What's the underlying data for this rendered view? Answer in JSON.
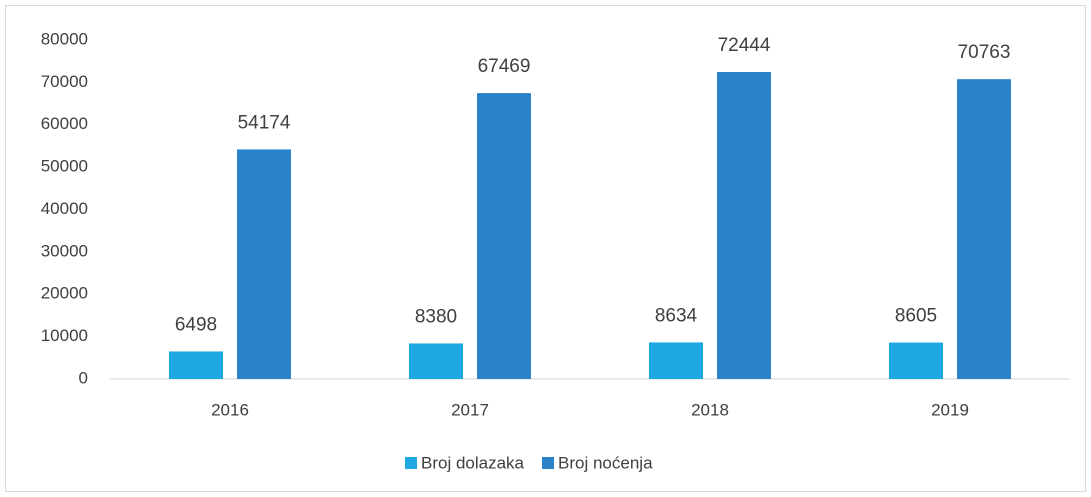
{
  "chart_data": {
    "type": "bar",
    "categories": [
      "2016",
      "2017",
      "2018",
      "2019"
    ],
    "series": [
      {
        "name": "Broj dolazaka",
        "color": "#1ea7e0",
        "values": [
          6498,
          8380,
          8634,
          8605
        ]
      },
      {
        "name": "Broj noćenja",
        "color": "#2a82c9",
        "values": [
          54174,
          67469,
          72444,
          70763
        ]
      }
    ],
    "ylim": [
      0,
      80000
    ],
    "yticks": [
      0,
      10000,
      20000,
      30000,
      40000,
      50000,
      60000,
      70000,
      80000
    ],
    "grid": false,
    "legend": "bottom"
  }
}
